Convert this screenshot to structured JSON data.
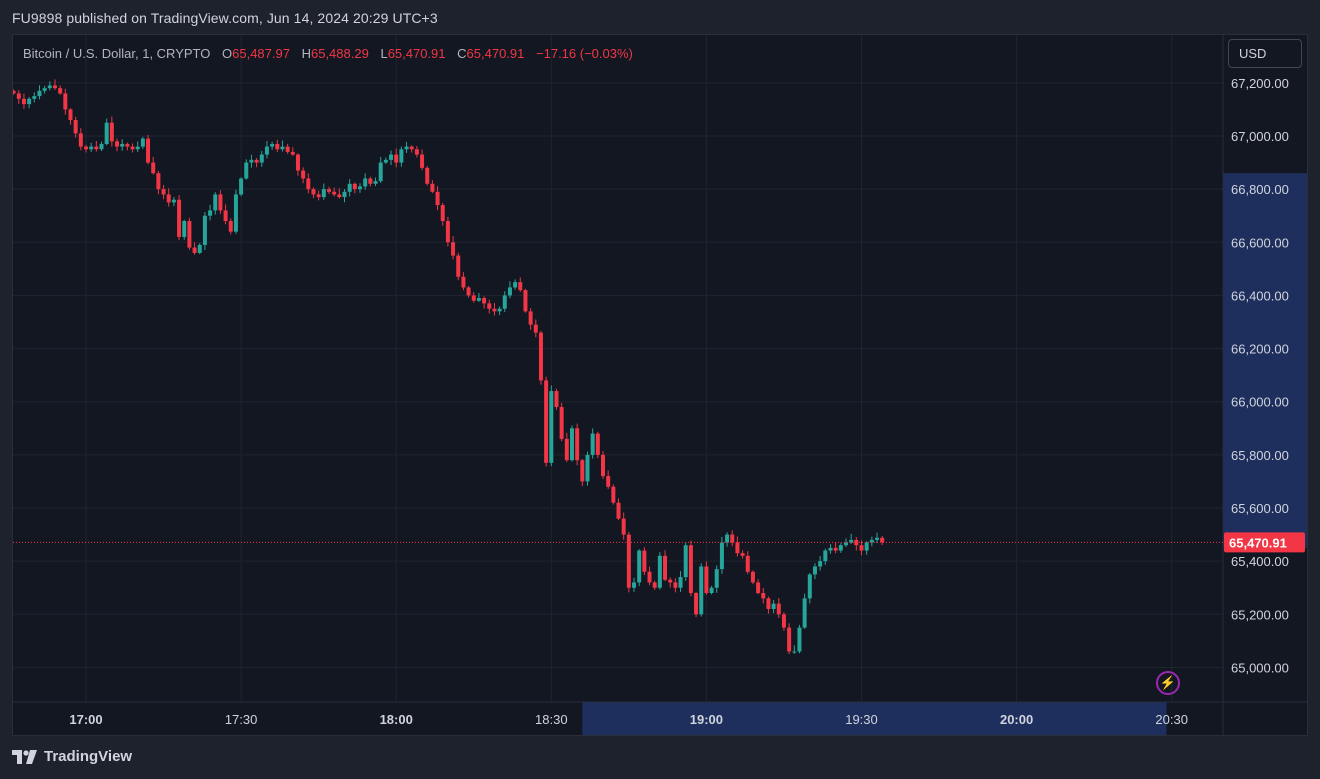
{
  "header": {
    "published_text": "FU9898 published on TradingView.com, Jun 14, 2024 20:29 UTC+3"
  },
  "legend": {
    "symbol": "Bitcoin / U.S. Dollar, 1, CRYPTO",
    "open_label": "O",
    "open": "65,487.97",
    "high_label": "H",
    "high": "65,488.29",
    "low_label": "L",
    "low": "65,470.91",
    "close_label": "C",
    "close": "65,470.91",
    "change": "−17.16 (−0.03%)"
  },
  "currency_button": {
    "label": "USD"
  },
  "footer": {
    "brand": "TradingView"
  },
  "colors": {
    "up": "#26a69a",
    "down": "#f23645",
    "background": "#131722",
    "grid": "#1f2430",
    "price_tag": "#f23645",
    "highlight": "#1e2f5e"
  },
  "chart_data": {
    "type": "candlestick",
    "symbol": "Bitcoin / U.S. Dollar",
    "timeframe": "1",
    "exchange": "CRYPTO",
    "currency": "USD",
    "last_price": 65470.91,
    "last_price_label": "65,470.91",
    "ylim": [
      64870,
      67380
    ],
    "y_ticks": [
      {
        "value": 65000,
        "label": "65,000.00"
      },
      {
        "value": 65200,
        "label": "65,200.00"
      },
      {
        "value": 65400,
        "label": "65,400.00"
      },
      {
        "value": 65600,
        "label": "65,600.00"
      },
      {
        "value": 65800,
        "label": "65,800.00"
      },
      {
        "value": 66000,
        "label": "66,000.00"
      },
      {
        "value": 66200,
        "label": "66,200.00"
      },
      {
        "value": 66400,
        "label": "66,400.00"
      },
      {
        "value": 66600,
        "label": "66,600.00"
      },
      {
        "value": 66800,
        "label": "66,800.00"
      },
      {
        "value": 67000,
        "label": "67,000.00"
      },
      {
        "value": 67200,
        "label": "67,200.00"
      }
    ],
    "x_ticks": [
      {
        "minute": 0,
        "label": "17:00",
        "bold": true
      },
      {
        "minute": 30,
        "label": "17:30",
        "bold": false
      },
      {
        "minute": 60,
        "label": "18:00",
        "bold": true
      },
      {
        "minute": 90,
        "label": "18:30",
        "bold": false
      },
      {
        "minute": 120,
        "label": "19:00",
        "bold": true
      },
      {
        "minute": 150,
        "label": "19:30",
        "bold": false
      },
      {
        "minute": 180,
        "label": "20:00",
        "bold": true
      },
      {
        "minute": 210,
        "label": "20:30",
        "bold": false
      }
    ],
    "x_start_time": "16:46",
    "highlight_y_range": [
      65450,
      66860
    ],
    "highlight_x_range": [
      "18:36",
      "20:29"
    ],
    "closes": [
      67160,
      67140,
      67120,
      67140,
      67150,
      67170,
      67180,
      67190,
      67180,
      67160,
      67100,
      67060,
      67010,
      66960,
      66950,
      66960,
      66950,
      66970,
      67050,
      66980,
      66960,
      66970,
      66960,
      66950,
      66960,
      66990,
      66900,
      66860,
      66800,
      66780,
      66750,
      66760,
      66620,
      66680,
      66580,
      66560,
      66590,
      66700,
      66720,
      66780,
      66720,
      66680,
      66640,
      66780,
      66840,
      66900,
      66910,
      66900,
      66930,
      66960,
      66970,
      66950,
      66960,
      66940,
      66930,
      66870,
      66840,
      66800,
      66780,
      66770,
      66800,
      66790,
      66780,
      66770,
      66790,
      66820,
      66800,
      66810,
      66840,
      66820,
      66830,
      66900,
      66910,
      66930,
      66900,
      66950,
      66960,
      66950,
      66930,
      66880,
      66820,
      66790,
      66740,
      66680,
      66600,
      66550,
      66470,
      66430,
      66400,
      66380,
      66390,
      66370,
      66350,
      66340,
      66350,
      66400,
      66430,
      66450,
      66420,
      66340,
      66290,
      66260,
      66080,
      65770,
      66040,
      65980,
      65860,
      65780,
      65900,
      65780,
      65700,
      65800,
      65880,
      65800,
      65720,
      65680,
      65620,
      65560,
      65500,
      65300,
      65320,
      65440,
      65360,
      65320,
      65300,
      65420,
      65330,
      65320,
      65300,
      65340,
      65460,
      65280,
      65200,
      65380,
      65280,
      65300,
      65370,
      65470,
      65500,
      65470,
      65430,
      65420,
      65360,
      65320,
      65280,
      65260,
      65220,
      65240,
      65200,
      65150,
      65060,
      65060,
      65150,
      65260,
      65350,
      65380,
      65400,
      65440,
      65450,
      65440,
      65460,
      65470,
      65480,
      65460,
      65440,
      65470,
      65480,
      65487.97,
      65470.91
    ]
  }
}
